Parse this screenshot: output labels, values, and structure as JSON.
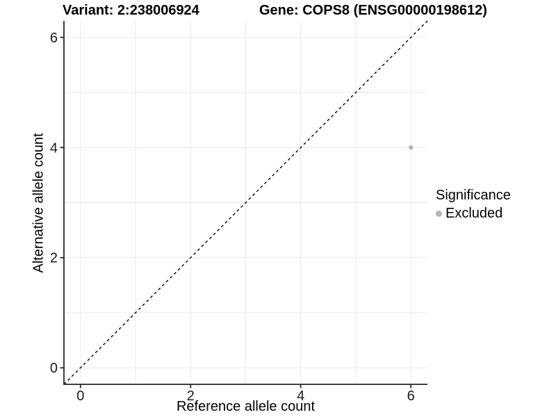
{
  "header": {
    "title_left": "Variant: 2:238006924",
    "title_right": "Gene: COPS8 (ENSG00000198612)"
  },
  "chart_data": {
    "type": "scatter",
    "title_left": "Variant: 2:238006924",
    "title_right": "Gene: COPS8 (ENSG00000198612)",
    "xlabel": "Reference allele count",
    "ylabel": "Alternative allele count",
    "xlim": [
      -0.3,
      6.3
    ],
    "ylim": [
      -0.3,
      6.3
    ],
    "x_ticks": [
      0,
      2,
      4,
      6
    ],
    "y_ticks": [
      0,
      2,
      4,
      6
    ],
    "gridlines_x": [
      0,
      1,
      2,
      3,
      4,
      5,
      6
    ],
    "gridlines_y": [
      0,
      1,
      2,
      3,
      4,
      5,
      6
    ],
    "grid": true,
    "points": [
      {
        "x": 6,
        "y": 4,
        "series": "Excluded"
      }
    ],
    "reference_line": {
      "style": "dashed",
      "from": [
        -0.3,
        -0.3
      ],
      "to": [
        6.3,
        6.3
      ],
      "dash": "4,4"
    },
    "legend": {
      "title": "Significance",
      "position": "right",
      "entries": [
        {
          "label": "Excluded",
          "color": "#b4b4b4"
        }
      ]
    },
    "colors": {
      "point": "#b4b4b4",
      "grid": "#e9e9e9",
      "axis": "#262626",
      "diagonal": "#000000",
      "tick_text": "#1a1a1a",
      "text": "#000000"
    }
  }
}
